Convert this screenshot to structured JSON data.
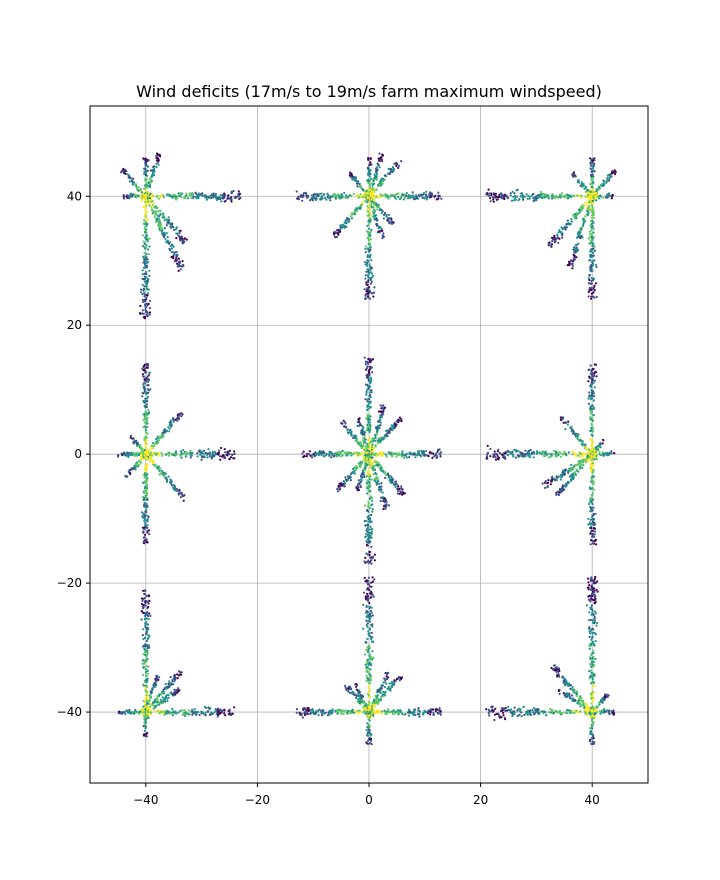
{
  "chart_data": {
    "type": "scatter",
    "title": "Wind deficits (17m/s to 19m/s farm maximum windspeed)",
    "xlabel": "",
    "ylabel": "",
    "xlim": [
      -50,
      50
    ],
    "ylim": [
      -51,
      54
    ],
    "xticks": [
      -40,
      -20,
      0,
      20,
      40
    ],
    "yticks": [
      -40,
      -20,
      0,
      20,
      40
    ],
    "grid": true,
    "colormap": "viridis",
    "colors": {
      "grid": "#b0b0b0",
      "axes": "#000000",
      "viridis": [
        "#440154",
        "#3b528b",
        "#21918c",
        "#5ec962",
        "#fde725"
      ]
    },
    "turbines": [
      {
        "x": -40,
        "y": 40
      },
      {
        "x": 0,
        "y": 40
      },
      {
        "x": 40,
        "y": 40
      },
      {
        "x": -40,
        "y": 0
      },
      {
        "x": 0,
        "y": 0
      },
      {
        "x": 40,
        "y": 0
      },
      {
        "x": -40,
        "y": -40
      },
      {
        "x": 0,
        "y": -40
      },
      {
        "x": 40,
        "y": -40
      }
    ],
    "wake_arms": [
      {
        "cx": -40,
        "cy": 40,
        "angles": [
          0,
          90,
          -90,
          180,
          -45,
          135,
          -60,
          70
        ],
        "lengths": [
          17,
          6,
          19,
          4,
          10,
          6,
          13,
          7
        ]
      },
      {
        "cx": 0,
        "cy": 40,
        "angles": [
          0,
          180,
          90,
          -90,
          45,
          -135,
          -45,
          135,
          -70,
          70
        ],
        "lengths": [
          13,
          13,
          6,
          16,
          8,
          9,
          6,
          5,
          7,
          7
        ]
      },
      {
        "cx": 40,
        "cy": 40,
        "angles": [
          180,
          90,
          -90,
          0,
          -135,
          45,
          -110,
          135
        ],
        "lengths": [
          19,
          6,
          16,
          4,
          11,
          6,
          12,
          5
        ]
      },
      {
        "cx": -40,
        "cy": 0,
        "angles": [
          0,
          90,
          -90,
          180,
          -45,
          45,
          -135,
          135
        ],
        "lengths": [
          16,
          14,
          14,
          5,
          10,
          9,
          5,
          4
        ]
      },
      {
        "cx": 0,
        "cy": 0,
        "angles": [
          0,
          180,
          90,
          -90,
          45,
          -45,
          -135,
          135,
          -70,
          70,
          -110,
          110
        ],
        "lengths": [
          13,
          12,
          15,
          17,
          8,
          9,
          8,
          7,
          9,
          8,
          6,
          6
        ]
      },
      {
        "cx": 40,
        "cy": 0,
        "angles": [
          180,
          90,
          -90,
          0,
          -135,
          135,
          -150,
          45
        ],
        "lengths": [
          19,
          14,
          14,
          4,
          9,
          8,
          10,
          3
        ]
      },
      {
        "cx": -40,
        "cy": -40,
        "angles": [
          0,
          90,
          180,
          45,
          30,
          70,
          -90
        ],
        "lengths": [
          16,
          19,
          5,
          9,
          7,
          6,
          4
        ]
      },
      {
        "cx": 0,
        "cy": -40,
        "angles": [
          0,
          180,
          90,
          45,
          135,
          60,
          120,
          -90
        ],
        "lengths": [
          13,
          13,
          21,
          8,
          6,
          7,
          5,
          5
        ]
      },
      {
        "cx": 40,
        "cy": -40,
        "angles": [
          180,
          90,
          135,
          150,
          0,
          -90,
          45
        ],
        "lengths": [
          19,
          21,
          10,
          7,
          4,
          5,
          4
        ]
      }
    ]
  }
}
